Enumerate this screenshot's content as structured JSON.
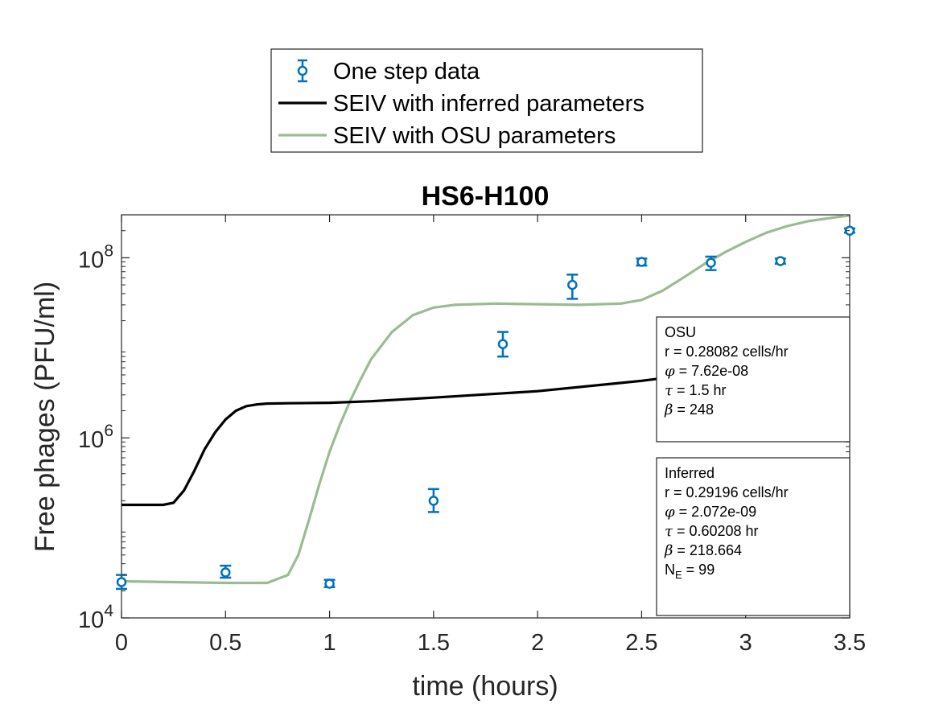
{
  "chart_data": {
    "type": "line",
    "title": "HS6-H100",
    "xlabel": "time (hours)",
    "ylabel": "Free phages (PFU/ml)",
    "xlim": [
      0,
      3.5
    ],
    "ylim": [
      10000,
      300000000
    ],
    "yscale": "log",
    "xticks": [
      "0",
      "0.5",
      "1",
      "1.5",
      "2",
      "2.5",
      "3",
      "3.5"
    ],
    "xtick_values": [
      0,
      0.5,
      1,
      1.5,
      2,
      2.5,
      3,
      3.5
    ],
    "yticks": [
      {
        "value": 10000,
        "base": "10",
        "exp": "4"
      },
      {
        "value": 1000000,
        "base": "10",
        "exp": "6"
      },
      {
        "value": 100000000,
        "base": "10",
        "exp": "8"
      }
    ],
    "grid": false,
    "legend_position": "top-center-outside",
    "series": [
      {
        "name": "One step data",
        "kind": "errorbar",
        "color": "#0072BD",
        "x": [
          0,
          0.5,
          1,
          1.5,
          1.833,
          2.167,
          2.5,
          2.833,
          3.167,
          3.5
        ],
        "y": [
          25000,
          32000,
          24000,
          200000,
          11000000,
          50000000,
          90000000,
          88000000,
          92000000,
          200000000
        ],
        "ylow": [
          21000,
          28000,
          22000,
          150000,
          8000000,
          35000000,
          82000000,
          73000000,
          86000000,
          190000000
        ],
        "yhigh": [
          30000,
          38000,
          26500,
          270000,
          15000000,
          65000000,
          98000000,
          103000000,
          98000000,
          212000000
        ]
      },
      {
        "name": "SEIV with inferred parameters",
        "kind": "line",
        "color": "#000000",
        "x": [
          0,
          0.2,
          0.25,
          0.3,
          0.35,
          0.4,
          0.45,
          0.5,
          0.55,
          0.6,
          0.65,
          0.7,
          0.8,
          1.0,
          1.2,
          1.5,
          2.0,
          2.5,
          3.0,
          3.5
        ],
        "y": [
          180000,
          180000,
          190000,
          260000,
          430000,
          750000,
          1150000,
          1600000,
          2000000,
          2250000,
          2350000,
          2400000,
          2420000,
          2450000,
          2550000,
          2800000,
          3300000,
          4300000,
          6000000,
          9300000
        ]
      },
      {
        "name": "SEIV with OSU parameters",
        "kind": "line",
        "color": "#9BBB92",
        "x": [
          0,
          0.25,
          0.5,
          0.7,
          0.8,
          0.85,
          0.9,
          0.95,
          1.0,
          1.05,
          1.1,
          1.15,
          1.2,
          1.3,
          1.4,
          1.5,
          1.6,
          1.8,
          2.0,
          2.2,
          2.4,
          2.5,
          2.6,
          2.7,
          2.8,
          2.9,
          3.0,
          3.1,
          3.2,
          3.3,
          3.4,
          3.5
        ],
        "y": [
          25500,
          25000,
          24500,
          24500,
          30000,
          50000,
          120000,
          300000,
          700000,
          1400000,
          2600000,
          4500000,
          7500000,
          15000000,
          23000000,
          28000000,
          30000000,
          31000000,
          30500000,
          30000000,
          31000000,
          34000000,
          43000000,
          60000000,
          85000000,
          115000000,
          150000000,
          190000000,
          225000000,
          255000000,
          275000000,
          295000000
        ]
      }
    ],
    "annotations": [
      {
        "label": "OSU",
        "lines": [
          {
            "sym": "",
            "text": "r = 0.28082 cells/hr"
          },
          {
            "sym": "φ",
            "text": " = 7.62e-08"
          },
          {
            "sym": "τ",
            "text": " = 1.5 hr"
          },
          {
            "sym": "β",
            "text": " = 248"
          }
        ]
      },
      {
        "label": "Inferred",
        "lines": [
          {
            "sym": "",
            "text": "r = 0.29196 cells/hr"
          },
          {
            "sym": "φ",
            "text": " = 2.072e-09"
          },
          {
            "sym": "τ",
            "text": " = 0.60208 hr"
          },
          {
            "sym": "β",
            "text": " = 218.664"
          }
        ],
        "ne": {
          "prefix": "N",
          "sub": "E",
          "suffix": " = 99"
        }
      }
    ]
  }
}
